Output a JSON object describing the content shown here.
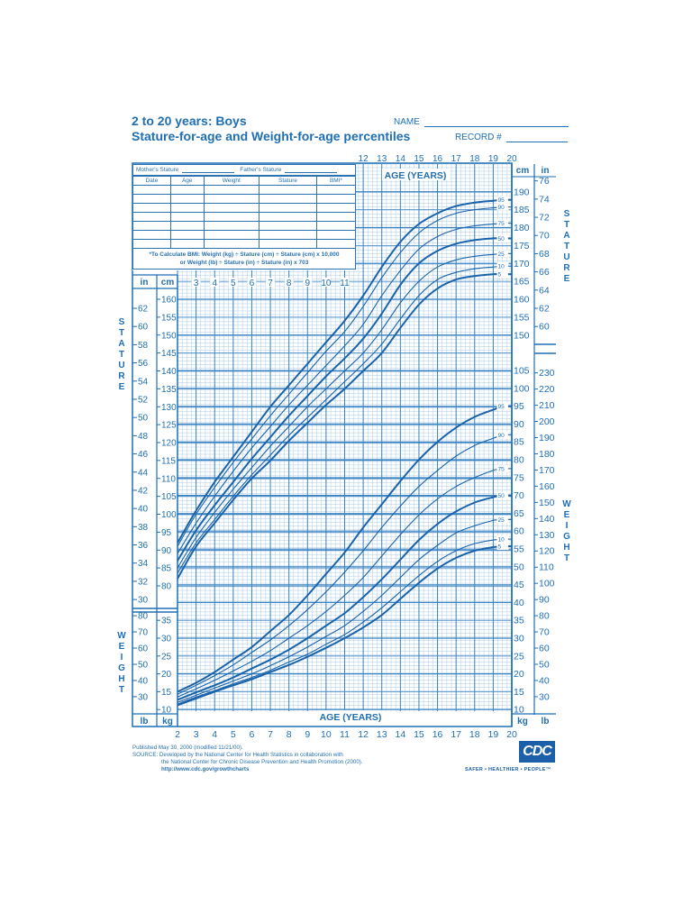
{
  "header": {
    "title_line1": "2 to 20 years: Boys",
    "title_line2": "Stature-for-age and Weight-for-age percentiles",
    "name_label": "NAME",
    "record_label": "RECORD #"
  },
  "record_table": {
    "mothers_stature": "Mother's Stature",
    "fathers_stature": "Father's Stature",
    "columns": [
      "Date",
      "Age",
      "Weight",
      "Stature",
      "BMI*"
    ],
    "empty_rows": 7,
    "bmi_note_bold": "*To Calculate BMI:",
    "bmi_note_line1": " Weight (kg) ÷ Stature (cm) ÷ Stature (cm) x 10,000",
    "bmi_note_line2": "or Weight (lb) ÷ Stature (in) ÷ Stature (in) x 703"
  },
  "axis_labels": {
    "age_years": "AGE (YEARS)",
    "stature_vertical": "STATURE",
    "weight_vertical": "WEIGHT",
    "cm": "cm",
    "in": "in",
    "kg": "kg",
    "lb": "lb"
  },
  "footer": {
    "published": "Published May 30, 2000 (modified 11/21/00).",
    "source_line1": "SOURCE: Developed by the National Center for Health Statistics in collaboration with",
    "source_line2": "the National Center for Chronic Disease Prevention and Health Promotion (2000).",
    "url": "http://www.cdc.gov/growthcharts",
    "logo": "CDC",
    "tagline": "SAFER • HEALTHIER • PEOPLE™"
  },
  "colors": {
    "primary": "#1e6fb3",
    "grid_major": "#3a82c0",
    "grid_minor": "#a9cbe8",
    "curve": "#1a63aa"
  },
  "chart_data": {
    "type": "line",
    "title": "2 to 20 years: Boys — Stature-for-age and Weight-for-age percentiles",
    "xlabel": "AGE (YEARS)",
    "x_ticks": [
      2,
      3,
      4,
      5,
      6,
      7,
      8,
      9,
      10,
      11,
      12,
      13,
      14,
      15,
      16,
      17,
      18,
      19,
      20
    ],
    "xlim": [
      2,
      20
    ],
    "grid": true,
    "stature": {
      "ylabel": "STATURE",
      "unit": "cm",
      "ylim": [
        77,
        195
      ],
      "cm_ticks": [
        80,
        85,
        90,
        95,
        100,
        105,
        110,
        115,
        120,
        125,
        130,
        135,
        140,
        145,
        150,
        155,
        160,
        165,
        170,
        175,
        180,
        185,
        190
      ],
      "in_ticks_left": [
        30,
        32,
        34,
        36,
        38,
        40,
        42,
        44,
        46,
        48,
        50,
        52,
        54,
        56,
        58,
        60,
        62
      ],
      "in_ticks_right": [
        60,
        62,
        64,
        66,
        68,
        70,
        72,
        74,
        76
      ],
      "x": [
        2,
        3,
        4,
        5,
        6,
        7,
        8,
        9,
        10,
        11,
        12,
        13,
        14,
        15,
        16,
        17,
        18,
        19,
        20
      ],
      "series": [
        {
          "name": "95",
          "values": [
            92,
            101,
            109,
            116,
            123,
            130,
            136,
            142,
            148,
            154,
            161,
            169,
            176,
            181,
            184,
            186,
            187,
            187.5,
            188
          ]
        },
        {
          "name": "90",
          "values": [
            91,
            100,
            107.5,
            114.5,
            121,
            127.5,
            133.5,
            139.5,
            145.5,
            151,
            158,
            166,
            173,
            178.5,
            182,
            184,
            185,
            185.5,
            186
          ]
        },
        {
          "name": "75",
          "values": [
            89,
            97.5,
            105,
            112,
            118.5,
            124.5,
            130.5,
            136,
            141.5,
            147,
            153,
            161,
            168,
            174,
            177.5,
            179.5,
            180.5,
            181,
            181.5
          ]
        },
        {
          "name": "50",
          "values": [
            87,
            95.5,
            102.5,
            109,
            115.5,
            121.5,
            127.5,
            133,
            138.5,
            143.5,
            149,
            156,
            164,
            170,
            173.5,
            175.5,
            176.5,
            177,
            177
          ]
        },
        {
          "name": "25",
          "values": [
            85,
            93.5,
            100.5,
            107,
            113,
            119,
            124.5,
            130,
            135,
            140,
            145,
            151.5,
            159,
            165,
            169,
            171,
            172,
            172.5,
            173
          ]
        },
        {
          "name": "10",
          "values": [
            83.5,
            92,
            98.5,
            105,
            111,
            116.5,
            122,
            127,
            132,
            137,
            142,
            147.5,
            154.5,
            161,
            165.5,
            167.5,
            168.5,
            169,
            169.5
          ]
        },
        {
          "name": "5",
          "values": [
            82,
            91,
            97.5,
            104,
            110,
            115,
            120.5,
            125.5,
            130.5,
            135,
            140,
            145,
            152,
            158.5,
            163,
            165.5,
            166.5,
            167,
            167
          ]
        }
      ]
    },
    "weight": {
      "ylabel": "WEIGHT",
      "unit": "kg",
      "ylim": [
        8,
        108
      ],
      "kg_ticks": [
        10,
        15,
        20,
        25,
        30,
        35,
        40,
        45,
        50,
        55,
        60,
        65,
        70,
        75,
        80,
        85,
        90,
        95,
        100,
        105
      ],
      "lb_ticks_left": [
        30,
        40,
        50,
        60,
        70,
        80
      ],
      "lb_ticks_right": [
        30,
        40,
        50,
        60,
        70,
        80,
        90,
        100,
        110,
        120,
        130,
        140,
        150,
        160,
        170,
        180,
        190,
        200,
        210,
        220,
        230
      ],
      "x": [
        2,
        3,
        4,
        5,
        6,
        7,
        8,
        9,
        10,
        11,
        12,
        13,
        14,
        15,
        16,
        17,
        18,
        19,
        20
      ],
      "series": [
        {
          "name": "95",
          "values": [
            15,
            17.5,
            20.5,
            24,
            27.5,
            32,
            36.5,
            42,
            48,
            54,
            61,
            67.5,
            74,
            80,
            85,
            89,
            92,
            94,
            96
          ]
        },
        {
          "name": "90",
          "values": [
            14.3,
            16.8,
            19.5,
            22.5,
            26,
            29.5,
            33.5,
            38,
            43,
            48.5,
            54.5,
            61,
            67,
            72.5,
            77,
            81,
            84,
            86,
            88
          ]
        },
        {
          "name": "75",
          "values": [
            13.5,
            15.8,
            18.2,
            20.8,
            23.5,
            26.5,
            30,
            33.5,
            37.5,
            42,
            47,
            53,
            59,
            64.5,
            69,
            72.5,
            75,
            77,
            78
          ]
        },
        {
          "name": "50",
          "values": [
            12.7,
            14.8,
            16.8,
            19,
            21.5,
            24,
            26.8,
            30,
            33.5,
            37,
            41.5,
            46.5,
            52,
            57.5,
            62,
            65.5,
            68,
            69.5,
            70.5
          ]
        },
        {
          "name": "25",
          "values": [
            12,
            14,
            16,
            18,
            20,
            22.3,
            24.8,
            27.5,
            30.5,
            33.5,
            37.5,
            42,
            47,
            52,
            56,
            59.5,
            61.5,
            63,
            63.5
          ]
        },
        {
          "name": "10",
          "values": [
            11.5,
            13.5,
            15.3,
            17.2,
            19,
            21,
            23.3,
            25.5,
            28.3,
            31,
            34.5,
            38.5,
            43,
            47.5,
            51.5,
            54.5,
            56.5,
            57.5,
            58
          ]
        },
        {
          "name": "5",
          "values": [
            11.2,
            13.1,
            15,
            16.8,
            18.5,
            20.5,
            22.5,
            24.8,
            27.3,
            30,
            33,
            36.5,
            41,
            45.5,
            49.5,
            52.5,
            54.5,
            55.5,
            56
          ]
        }
      ]
    }
  }
}
